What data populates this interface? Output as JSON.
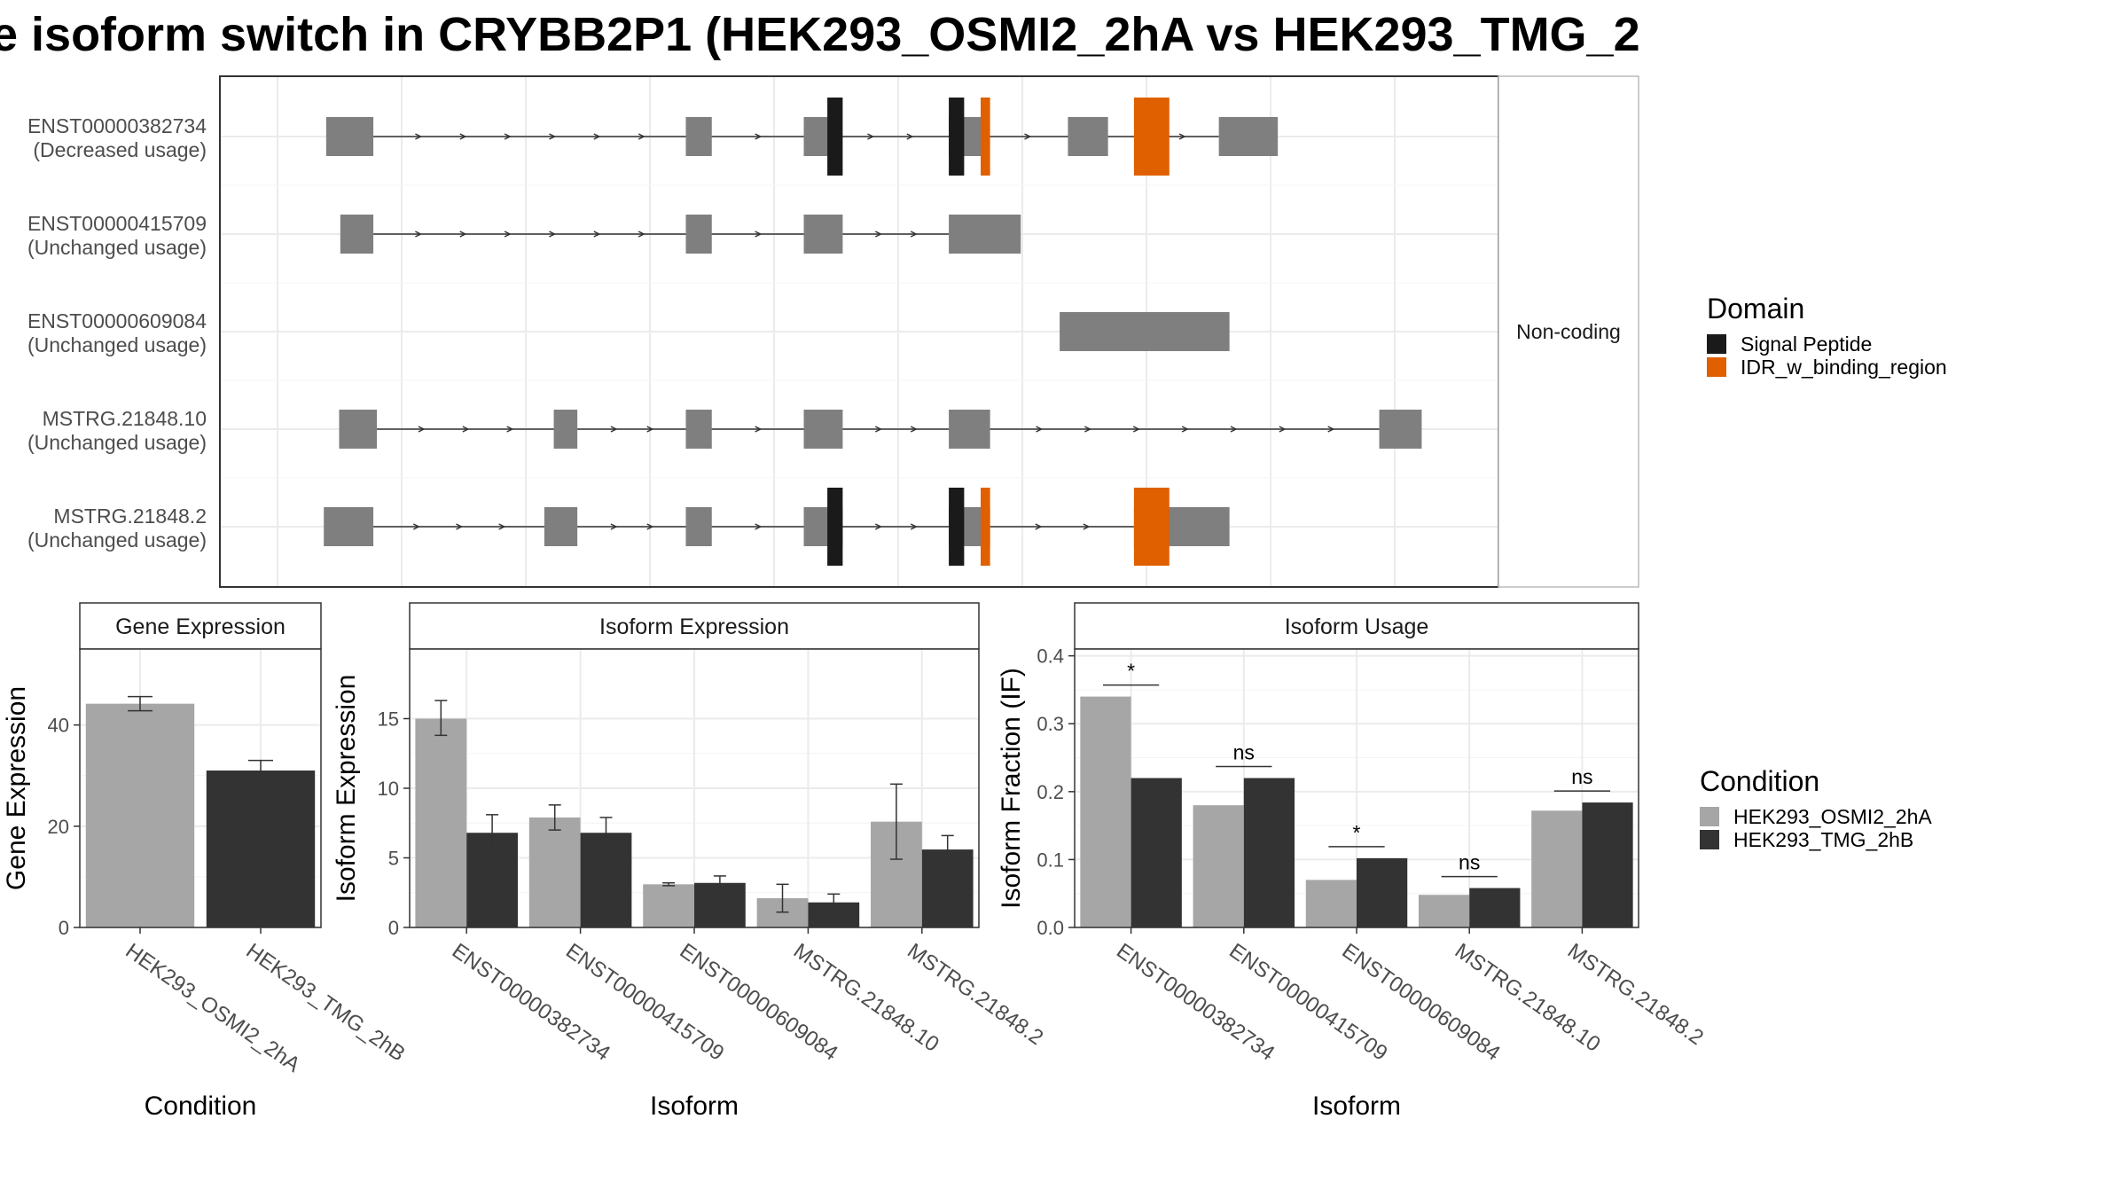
{
  "title": "e isoform switch in CRYBB2P1 (HEK293_OSMI2_2hA vs HEK293_TMG_2",
  "colors": {
    "exon": "#7f7f7f",
    "signal_peptide": "#1a1a1a",
    "idr": "#e06000",
    "cond_a": "#a6a6a6",
    "cond_b": "#333333"
  },
  "domain_legend": {
    "title": "Domain",
    "items": [
      {
        "label": "Signal Peptide",
        "color": "#1a1a1a"
      },
      {
        "label": "IDR_w_binding_region",
        "color": "#e06000"
      }
    ]
  },
  "condition_legend": {
    "title": "Condition",
    "items": [
      {
        "label": "HEK293_OSMI2_2hA",
        "color": "#a6a6a6"
      },
      {
        "label": "HEK293_TMG_2hB",
        "color": "#333333"
      }
    ]
  },
  "structure": {
    "coding_strip": "Non-coding",
    "x_range": [
      0,
      1000
    ],
    "transcripts": [
      {
        "name": "ENST00000382734",
        "usage": "(Decreased usage)",
        "exons": [
          [
            45,
            85
          ],
          [
            350,
            372
          ],
          [
            450,
            473
          ],
          [
            573,
            605
          ],
          [
            674,
            708
          ],
          [
            802,
            852
          ]
        ],
        "domains": [
          {
            "type": "signal_peptide",
            "range": [
              470,
              483
            ]
          },
          {
            "type": "signal_peptide",
            "range": [
              573,
              586
            ]
          },
          {
            "type": "idr",
            "range": [
              600,
              608
            ]
          },
          {
            "type": "idr",
            "range": [
              730,
              760
            ]
          }
        ],
        "thin_domains": [
          [
            450,
            470
          ],
          [
            483,
            484
          ]
        ]
      },
      {
        "name": "ENST00000415709",
        "usage": "(Unchanged usage)",
        "exons": [
          [
            57,
            85
          ],
          [
            350,
            372
          ],
          [
            450,
            483
          ],
          [
            573,
            634
          ]
        ],
        "domains": [],
        "thin_domains": []
      },
      {
        "name": "ENST00000609084",
        "usage": "(Unchanged usage)",
        "exons": [
          [
            667,
            811
          ]
        ],
        "domains": [],
        "thin_domains": []
      },
      {
        "name": "MSTRG.21848.10",
        "usage": "(Unchanged usage)",
        "exons": [
          [
            56,
            88
          ],
          [
            238,
            258
          ],
          [
            350,
            372
          ],
          [
            450,
            483
          ],
          [
            573,
            608
          ],
          [
            938,
            974
          ]
        ],
        "domains": [],
        "thin_domains": []
      },
      {
        "name": "MSTRG.21848.2",
        "usage": "(Unchanged usage)",
        "exons": [
          [
            43,
            85
          ],
          [
            230,
            258
          ],
          [
            350,
            372
          ],
          [
            450,
            483
          ],
          [
            573,
            608
          ],
          [
            730,
            811
          ]
        ],
        "domains": [
          {
            "type": "signal_peptide",
            "range": [
              470,
              483
            ]
          },
          {
            "type": "signal_peptide",
            "range": [
              573,
              586
            ]
          },
          {
            "type": "idr",
            "range": [
              600,
              608
            ]
          },
          {
            "type": "idr",
            "range": [
              730,
              760
            ]
          }
        ],
        "thin_domains": []
      }
    ]
  },
  "chart_data": [
    {
      "type": "bar",
      "title": "Gene Expression",
      "xlabel": "Condition",
      "ylabel": "Gene Expression",
      "categories": [
        "HEK293_OSMI2_2hA",
        "HEK293_TMG_2hB"
      ],
      "values": [
        44.2,
        31.0
      ],
      "errors": [
        [
          42.8,
          45.6
        ],
        [
          29.0,
          33.0
        ]
      ],
      "ylim": [
        0,
        55
      ],
      "yticks": [
        0,
        20,
        40
      ],
      "grid": true
    },
    {
      "type": "bar",
      "title": "Isoform Expression",
      "xlabel": "Isoform",
      "ylabel": "Isoform Expression",
      "categories": [
        "ENST00000382734",
        "ENST00000415709",
        "ENST00000609084",
        "MSTRG.21848.10",
        "MSTRG.21848.2"
      ],
      "series": [
        {
          "name": "HEK293_OSMI2_2hA",
          "values": [
            15.0,
            7.9,
            3.1,
            2.1,
            7.6
          ],
          "errors": [
            [
              13.8,
              16.3
            ],
            [
              7.0,
              8.8
            ],
            [
              3.0,
              3.2
            ],
            [
              1.1,
              3.1
            ],
            [
              4.9,
              10.3
            ]
          ]
        },
        {
          "name": "HEK293_TMG_2hB",
          "values": [
            6.8,
            6.8,
            3.2,
            1.8,
            5.6
          ],
          "errors": [
            [
              5.5,
              8.1
            ],
            [
              5.7,
              7.9
            ],
            [
              2.7,
              3.7
            ],
            [
              1.2,
              2.4
            ],
            [
              4.7,
              6.6
            ]
          ]
        }
      ],
      "ylim": [
        0,
        20
      ],
      "yticks": [
        0,
        5,
        10,
        15
      ],
      "grid": true
    },
    {
      "type": "bar",
      "title": "Isoform Usage",
      "xlabel": "Isoform",
      "ylabel": "Isoform Fraction (IF)",
      "categories": [
        "ENST00000382734",
        "ENST00000415709",
        "ENST00000609084",
        "MSTRG.21848.10",
        "MSTRG.21848.2"
      ],
      "series": [
        {
          "name": "HEK293_OSMI2_2hA",
          "values": [
            0.34,
            0.18,
            0.07,
            0.048,
            0.172
          ]
        },
        {
          "name": "HEK293_TMG_2hB",
          "values": [
            0.22,
            0.22,
            0.102,
            0.058,
            0.184
          ]
        }
      ],
      "annotations": [
        "*",
        "ns",
        "*",
        "ns",
        "ns"
      ],
      "ylim": [
        0,
        0.41
      ],
      "yticks": [
        0.0,
        0.1,
        0.2,
        0.3,
        0.4
      ],
      "grid": true
    }
  ]
}
